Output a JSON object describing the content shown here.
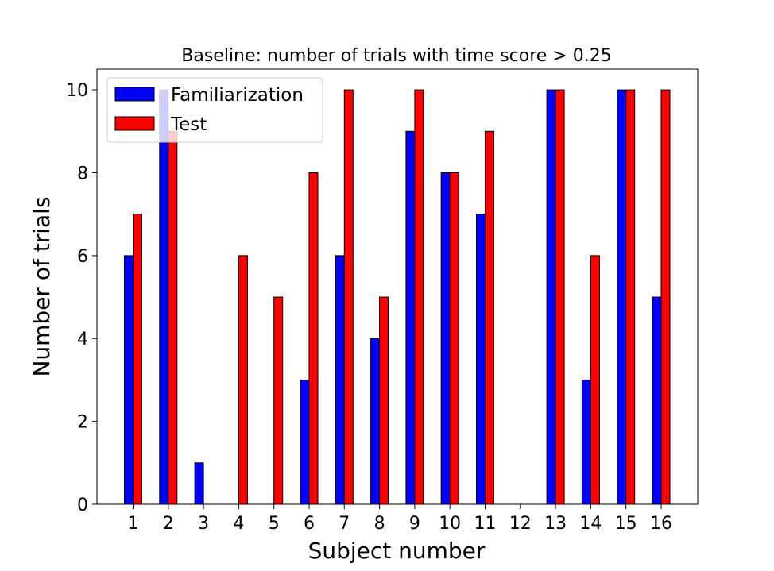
{
  "chart_data": {
    "type": "bar",
    "title": "Baseline: number of trials with time score > 0.25",
    "xlabel": "Subject number",
    "ylabel": "Number of trials",
    "categories": [
      "1",
      "2",
      "3",
      "4",
      "5",
      "6",
      "7",
      "8",
      "9",
      "10",
      "11",
      "12",
      "13",
      "14",
      "15",
      "16"
    ],
    "series": [
      {
        "name": "Familiarization",
        "color": "#0000ff",
        "values": [
          6,
          10,
          1,
          0,
          0,
          3,
          6,
          4,
          9,
          8,
          7,
          0,
          10,
          3,
          10,
          5
        ]
      },
      {
        "name": "Test",
        "color": "#ff0000",
        "values": [
          7,
          9,
          0,
          6,
          5,
          8,
          10,
          5,
          10,
          8,
          9,
          0,
          10,
          6,
          10,
          10
        ]
      }
    ],
    "ylim": [
      0,
      10.5
    ],
    "yticks": [
      0,
      2,
      4,
      6,
      8,
      10
    ],
    "grid": false,
    "legend_position": "top-left"
  }
}
